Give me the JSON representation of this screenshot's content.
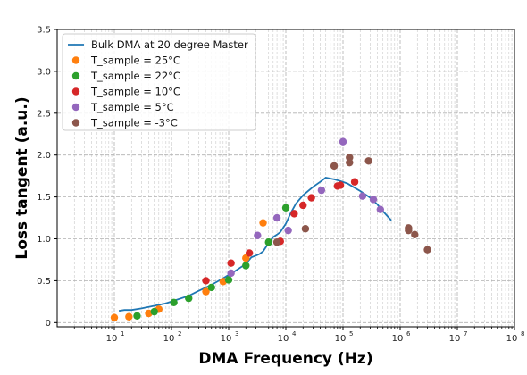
{
  "chart_data": {
    "type": "scatter",
    "xlabel": "DMA Frequency (Hz)",
    "ylabel": "Loss tangent (a.u.)",
    "xscale": "log",
    "xlim": [
      1,
      100000000
    ],
    "ylim": [
      -0.05,
      3.5
    ],
    "grid": true,
    "legend": "top-left",
    "x_ticks": [
      {
        "value": 10,
        "base": "10",
        "exp": "1"
      },
      {
        "value": 100,
        "base": "10",
        "exp": "2"
      },
      {
        "value": 1000,
        "base": "10",
        "exp": "3"
      },
      {
        "value": 10000,
        "base": "10",
        "exp": "4"
      },
      {
        "value": 100000,
        "base": "10",
        "exp": "5"
      },
      {
        "value": 1000000,
        "base": "10",
        "exp": "6"
      },
      {
        "value": 10000000,
        "base": "10",
        "exp": "7"
      },
      {
        "value": 100000000,
        "base": "10",
        "exp": "8"
      }
    ],
    "y_ticks": [
      {
        "value": 0,
        "label": "0"
      },
      {
        "value": 0.5,
        "label": "0.5"
      },
      {
        "value": 1.0,
        "label": "1.0"
      },
      {
        "value": 1.5,
        "label": "1.5"
      },
      {
        "value": 2.0,
        "label": "2.0"
      },
      {
        "value": 2.5,
        "label": "2.5"
      },
      {
        "value": 3.0,
        "label": "3.0"
      },
      {
        "value": 3.5,
        "label": "3.5"
      }
    ],
    "line_series": {
      "name": "Bulk DMA at 20 degree Master",
      "color": "#1f77b4",
      "x": [
        12,
        15,
        20,
        30,
        50,
        80,
        120,
        200,
        300,
        500,
        800,
        1200,
        2000,
        2500,
        3000,
        3500,
        4000,
        5000,
        6000,
        7000,
        8000,
        10000,
        12000,
        15000,
        20000,
        30000,
        40000,
        50000,
        60000,
        70000,
        90000,
        120000,
        150000,
        200000,
        300000,
        400000,
        500000,
        700000
      ],
      "y": [
        0.14,
        0.15,
        0.15,
        0.17,
        0.2,
        0.23,
        0.27,
        0.32,
        0.38,
        0.45,
        0.53,
        0.6,
        0.7,
        0.78,
        0.8,
        0.82,
        0.85,
        0.95,
        1.02,
        1.05,
        1.08,
        1.18,
        1.3,
        1.42,
        1.52,
        1.62,
        1.68,
        1.73,
        1.72,
        1.71,
        1.69,
        1.66,
        1.62,
        1.57,
        1.49,
        1.41,
        1.33,
        1.22
      ]
    },
    "series": [
      {
        "name": "T_sample = 25°C",
        "color": "#ff7f0e",
        "x": [
          10,
          18,
          40,
          60,
          400,
          800,
          2000,
          4000
        ],
        "y": [
          0.06,
          0.07,
          0.11,
          0.16,
          0.37,
          0.49,
          0.77,
          1.19
        ]
      },
      {
        "name": "T_sample = 22°C",
        "color": "#2ca02c",
        "x": [
          25,
          50,
          110,
          200,
          500,
          1000,
          2000,
          5000,
          10000
        ],
        "y": [
          0.08,
          0.13,
          0.24,
          0.29,
          0.42,
          0.51,
          0.68,
          0.96,
          1.37
        ]
      },
      {
        "name": "T_sample = 10°C",
        "color": "#d62728",
        "x": [
          400,
          1100,
          2300,
          8000,
          14000,
          20000,
          28000,
          80000,
          90000,
          160000
        ],
        "y": [
          0.5,
          0.71,
          0.83,
          0.97,
          1.3,
          1.4,
          1.49,
          1.63,
          1.64,
          1.68
        ]
      },
      {
        "name": "T_sample = 5°C",
        "color": "#9467bd",
        "x": [
          1100,
          3200,
          7000,
          11000,
          42000,
          100000,
          220000,
          340000,
          450000
        ],
        "y": [
          0.59,
          1.04,
          1.25,
          1.1,
          1.58,
          2.16,
          1.51,
          1.47,
          1.35
        ],
        "__": "5"
      },
      {
        "name": "T_sample = -3°C",
        "color": "#8c564b",
        "x": [
          7000,
          22000,
          70000,
          130000,
          130000,
          280000,
          1400000,
          1400000,
          1800000,
          3000000
        ],
        "y": [
          0.96,
          1.12,
          1.87,
          1.97,
          1.91,
          1.93,
          1.13,
          1.1,
          1.05,
          0.87
        ]
      }
    ]
  }
}
